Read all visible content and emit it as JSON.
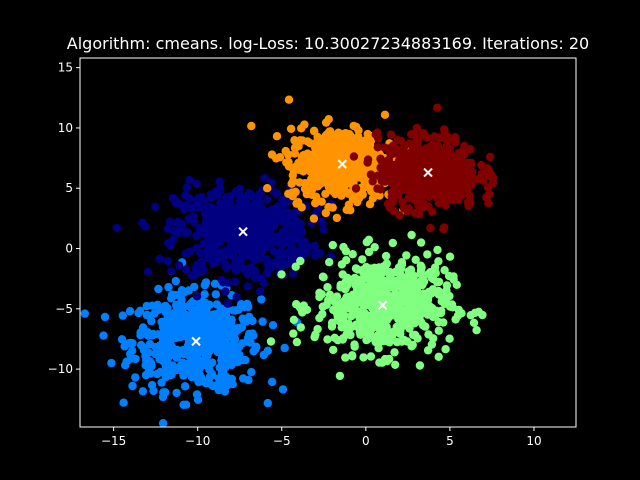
{
  "chart_data": {
    "type": "scatter",
    "title": "Algorithm: cmeans. log-Loss: 10.30027234883169. Iterations: 20",
    "xlabel": "",
    "ylabel": "",
    "xlim": [
      -17,
      12.5
    ],
    "ylim": [
      -14.8,
      15.8
    ],
    "xticks": [
      -15,
      -10,
      -5,
      0,
      5,
      10
    ],
    "yticks": [
      -10,
      -5,
      0,
      5,
      10,
      15
    ],
    "grid": false,
    "background": "#000000",
    "centroid_marker": "x",
    "centroid_color": "#ffffff",
    "clusters": [
      {
        "color": "#0080ff",
        "center": [
          -10.1,
          -7.7
        ],
        "spread": [
          1.9,
          2.0
        ],
        "count": 550
      },
      {
        "color": "#000080",
        "center": [
          -7.3,
          1.4
        ],
        "spread": [
          2.0,
          1.9
        ],
        "count": 550
      },
      {
        "color": "#80ff80",
        "center": [
          1.0,
          -4.7
        ],
        "spread": [
          2.0,
          2.0
        ],
        "count": 550
      },
      {
        "color": "#ff9400",
        "center": [
          -1.4,
          7.0
        ],
        "spread": [
          1.6,
          1.5
        ],
        "count": 550
      },
      {
        "color": "#800000",
        "center": [
          3.7,
          6.3
        ],
        "spread": [
          1.5,
          1.5
        ],
        "count": 550
      }
    ],
    "centroids": [
      {
        "x": -10.1,
        "y": -7.7
      },
      {
        "x": -7.3,
        "y": 1.4
      },
      {
        "x": 1.0,
        "y": -4.7
      },
      {
        "x": -1.4,
        "y": 7.0
      },
      {
        "x": 3.7,
        "y": 6.3
      }
    ]
  }
}
